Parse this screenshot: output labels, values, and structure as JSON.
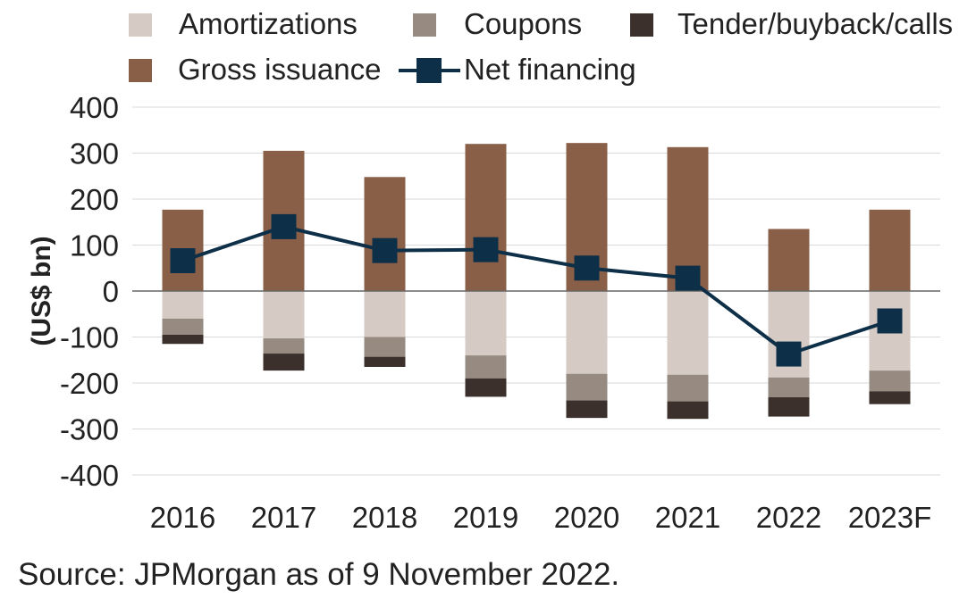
{
  "source_note": "Source: JPMorgan as of 9 November 2022.",
  "colors": {
    "amortizations": "#d5cac4",
    "coupons": "#968a81",
    "tender": "#3b302c",
    "gross_issuance": "#8a5f48",
    "net_financing": "#0e2f48",
    "gridline": "#d9d9d9",
    "zero_line": "#666666"
  },
  "chart_data": {
    "type": "bar",
    "stacked": true,
    "ylabel": "(US$ bn)",
    "ylim": [
      -400,
      400
    ],
    "yticks": [
      400,
      300,
      200,
      100,
      0,
      -100,
      -200,
      -300,
      -400
    ],
    "ytick_labels": [
      "400",
      "300",
      "200",
      "100",
      "0",
      "-100",
      "-200",
      "-300",
      "-400"
    ],
    "grid": true,
    "legend_position": "top",
    "categories": [
      "2016",
      "2017",
      "2018",
      "2019",
      "2020",
      "2021",
      "2022",
      "2023F"
    ],
    "series": [
      {
        "name": "Amortizations",
        "kind": "bar",
        "values": [
          -60,
          -103,
          -100,
          -140,
          -180,
          -182,
          -188,
          -173
        ]
      },
      {
        "name": "Coupons",
        "kind": "bar",
        "values": [
          -35,
          -33,
          -43,
          -50,
          -58,
          -58,
          -43,
          -45
        ]
      },
      {
        "name": "Tender/buyback/calls",
        "kind": "bar",
        "values": [
          -20,
          -37,
          -22,
          -40,
          -38,
          -38,
          -42,
          -28
        ]
      },
      {
        "name": "Gross issuance",
        "kind": "bar",
        "values": [
          177,
          305,
          248,
          320,
          322,
          313,
          135,
          177
        ]
      },
      {
        "name": "Net financing",
        "kind": "line",
        "values": [
          66,
          140,
          88,
          90,
          50,
          28,
          -137,
          -65
        ]
      }
    ]
  }
}
